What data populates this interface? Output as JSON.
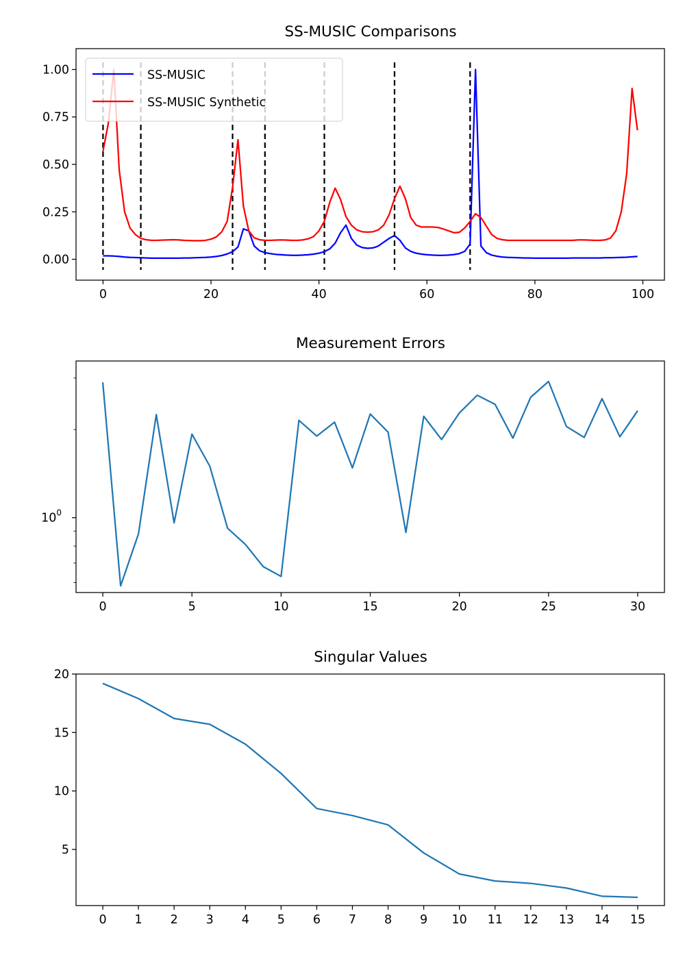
{
  "chart_data": [
    {
      "type": "line",
      "title": "SS-MUSIC Comparisons",
      "xlabel": "",
      "ylabel": "",
      "xlim": [
        -5,
        104
      ],
      "ylim": [
        -0.11,
        1.11
      ],
      "xticks": [
        0,
        20,
        40,
        60,
        80,
        100
      ],
      "yticks": [
        0.0,
        0.25,
        0.5,
        0.75,
        1.0
      ],
      "ytick_labels": [
        "0.00",
        "0.25",
        "0.50",
        "0.75",
        "1.00"
      ],
      "xtick_labels": [
        "0",
        "20",
        "40",
        "60",
        "80",
        "100"
      ],
      "legend": {
        "position": "top-left"
      },
      "vlines": {
        "x": [
          0,
          7,
          24,
          30,
          41,
          54,
          68
        ],
        "color": "#000000",
        "style": "dashed"
      },
      "series": [
        {
          "name": "SS-MUSIC",
          "color": "#0000ff",
          "x": [
            0,
            1,
            2,
            3,
            4,
            5,
            6,
            7,
            8,
            9,
            10,
            11,
            12,
            13,
            14,
            15,
            16,
            17,
            18,
            19,
            20,
            21,
            22,
            23,
            24,
            25,
            26,
            27,
            28,
            29,
            30,
            31,
            32,
            33,
            34,
            35,
            36,
            37,
            38,
            39,
            40,
            41,
            42,
            43,
            44,
            45,
            46,
            47,
            48,
            49,
            50,
            51,
            52,
            53,
            54,
            55,
            56,
            57,
            58,
            59,
            60,
            61,
            62,
            63,
            64,
            65,
            66,
            67,
            68,
            69,
            70,
            71,
            72,
            73,
            74,
            75,
            76,
            77,
            78,
            79,
            80,
            81,
            82,
            83,
            84,
            85,
            86,
            87,
            88,
            89,
            90,
            91,
            92,
            93,
            94,
            95,
            96,
            97,
            98,
            99
          ],
          "y": [
            0.018,
            0.018,
            0.017,
            0.015,
            0.012,
            0.01,
            0.009,
            0.008,
            0.007,
            0.006,
            0.006,
            0.006,
            0.006,
            0.006,
            0.006,
            0.007,
            0.007,
            0.008,
            0.009,
            0.01,
            0.012,
            0.015,
            0.02,
            0.028,
            0.04,
            0.065,
            0.16,
            0.15,
            0.07,
            0.045,
            0.035,
            0.03,
            0.026,
            0.024,
            0.022,
            0.021,
            0.021,
            0.022,
            0.024,
            0.027,
            0.032,
            0.04,
            0.055,
            0.085,
            0.14,
            0.18,
            0.11,
            0.075,
            0.062,
            0.058,
            0.06,
            0.07,
            0.09,
            0.11,
            0.125,
            0.1,
            0.06,
            0.042,
            0.032,
            0.027,
            0.024,
            0.022,
            0.021,
            0.021,
            0.022,
            0.025,
            0.03,
            0.042,
            0.08,
            1.0,
            0.07,
            0.035,
            0.022,
            0.016,
            0.012,
            0.01,
            0.009,
            0.008,
            0.007,
            0.007,
            0.006,
            0.006,
            0.006,
            0.006,
            0.006,
            0.006,
            0.006,
            0.007,
            0.007,
            0.007,
            0.007,
            0.007,
            0.007,
            0.008,
            0.008,
            0.009,
            0.01,
            0.011,
            0.013,
            0.015
          ]
        },
        {
          "name": "SS-MUSIC Synthetic",
          "color": "#ff0000",
          "x": [
            0,
            1,
            2,
            3,
            4,
            5,
            6,
            7,
            8,
            9,
            10,
            11,
            12,
            13,
            14,
            15,
            16,
            17,
            18,
            19,
            20,
            21,
            22,
            23,
            24,
            25,
            26,
            27,
            28,
            29,
            30,
            31,
            32,
            33,
            34,
            35,
            36,
            37,
            38,
            39,
            40,
            41,
            42,
            43,
            44,
            45,
            46,
            47,
            48,
            49,
            50,
            51,
            52,
            53,
            54,
            55,
            56,
            57,
            58,
            59,
            60,
            61,
            62,
            63,
            64,
            65,
            66,
            67,
            68,
            69,
            70,
            71,
            72,
            73,
            74,
            75,
            76,
            77,
            78,
            79,
            80,
            81,
            82,
            83,
            84,
            85,
            86,
            87,
            88,
            89,
            90,
            91,
            92,
            93,
            94,
            95,
            96,
            97,
            98,
            99
          ],
          "y": [
            0.57,
            0.72,
            1.0,
            0.47,
            0.25,
            0.165,
            0.13,
            0.11,
            0.103,
            0.1,
            0.1,
            0.101,
            0.102,
            0.103,
            0.102,
            0.1,
            0.099,
            0.098,
            0.098,
            0.1,
            0.106,
            0.118,
            0.145,
            0.2,
            0.38,
            0.63,
            0.28,
            0.15,
            0.113,
            0.103,
            0.1,
            0.1,
            0.101,
            0.102,
            0.101,
            0.1,
            0.1,
            0.102,
            0.108,
            0.12,
            0.15,
            0.2,
            0.3,
            0.375,
            0.315,
            0.225,
            0.18,
            0.155,
            0.145,
            0.143,
            0.145,
            0.155,
            0.18,
            0.235,
            0.32,
            0.385,
            0.32,
            0.22,
            0.18,
            0.17,
            0.17,
            0.17,
            0.168,
            0.16,
            0.15,
            0.14,
            0.142,
            0.165,
            0.2,
            0.24,
            0.22,
            0.175,
            0.13,
            0.11,
            0.103,
            0.1,
            0.1,
            0.1,
            0.1,
            0.1,
            0.1,
            0.1,
            0.1,
            0.1,
            0.1,
            0.1,
            0.1,
            0.1,
            0.102,
            0.102,
            0.101,
            0.1,
            0.1,
            0.102,
            0.112,
            0.15,
            0.25,
            0.45,
            0.9,
            0.68
          ]
        }
      ]
    },
    {
      "type": "line",
      "title": "Measurement Errors",
      "xlabel": "",
      "ylabel": "",
      "yscale": "log",
      "xlim": [
        -1.5,
        31.5
      ],
      "ylim": [
        0.555,
        3.43
      ],
      "xticks": [
        0,
        5,
        10,
        15,
        20,
        25,
        30
      ],
      "xtick_labels": [
        "0",
        "5",
        "10",
        "15",
        "20",
        "25",
        "30"
      ],
      "ytick_label": {
        "base": "10",
        "exponent": "0"
      },
      "series": [
        {
          "color": "#1f77b4",
          "x": [
            0,
            1,
            2,
            3,
            4,
            5,
            6,
            7,
            8,
            9,
            10,
            11,
            12,
            13,
            14,
            15,
            16,
            17,
            18,
            19,
            20,
            21,
            22,
            23,
            24,
            25,
            26,
            27,
            28,
            29,
            30
          ],
          "y": [
            2.9,
            0.585,
            0.88,
            2.25,
            0.96,
            1.93,
            1.5,
            0.92,
            0.81,
            0.68,
            0.63,
            2.15,
            1.9,
            2.12,
            1.48,
            2.26,
            1.96,
            0.89,
            2.22,
            1.85,
            2.28,
            2.62,
            2.44,
            1.87,
            2.58,
            2.92,
            2.05,
            1.88,
            2.55,
            1.89,
            2.32
          ]
        }
      ]
    },
    {
      "type": "line",
      "title": "Singular Values",
      "xlabel": "",
      "ylabel": "",
      "xlim": [
        -0.75,
        15.75
      ],
      "ylim": [
        0.2,
        20.0
      ],
      "xticks": [
        0,
        1,
        2,
        3,
        4,
        5,
        6,
        7,
        8,
        9,
        10,
        11,
        12,
        13,
        14,
        15
      ],
      "xtick_labels": [
        "0",
        "1",
        "2",
        "3",
        "4",
        "5",
        "6",
        "7",
        "8",
        "9",
        "10",
        "11",
        "12",
        "13",
        "14",
        "15"
      ],
      "yticks": [
        5,
        10,
        15,
        20
      ],
      "ytick_labels": [
        "5",
        "10",
        "15",
        "20"
      ],
      "series": [
        {
          "color": "#1f77b4",
          "x": [
            0,
            1,
            2,
            3,
            4,
            5,
            6,
            7,
            8,
            9,
            10,
            11,
            12,
            13,
            14,
            15
          ],
          "y": [
            19.2,
            17.9,
            16.2,
            15.7,
            14.0,
            11.5,
            8.5,
            7.9,
            7.1,
            4.7,
            2.9,
            2.3,
            2.1,
            1.7,
            1.0,
            0.9
          ]
        }
      ]
    }
  ]
}
